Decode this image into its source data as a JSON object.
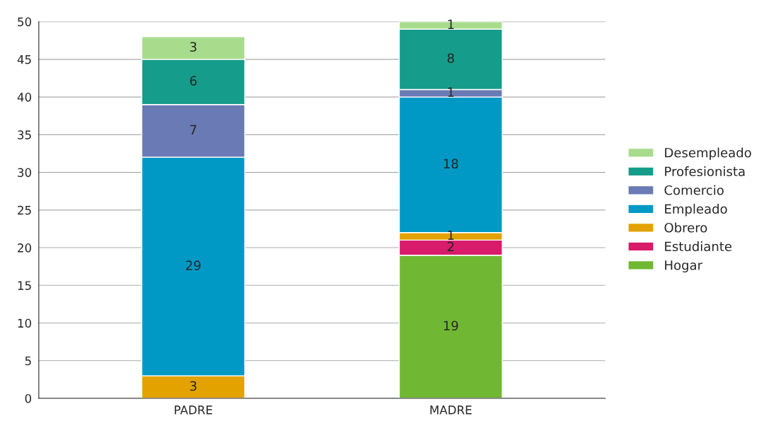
{
  "chart_data": {
    "type": "bar",
    "stacked": true,
    "categories": [
      "PADRE",
      "MADRE"
    ],
    "series": [
      {
        "name": "Hogar",
        "color": "#70b833",
        "values": [
          null,
          19
        ]
      },
      {
        "name": "Estudiante",
        "color": "#d81b6a",
        "values": [
          null,
          2
        ]
      },
      {
        "name": "Obrero",
        "color": "#e3a200",
        "values": [
          3,
          1
        ]
      },
      {
        "name": "Empleado",
        "color": "#0099c6",
        "values": [
          29,
          18
        ]
      },
      {
        "name": "Comercio",
        "color": "#6a7ab5",
        "values": [
          7,
          1
        ]
      },
      {
        "name": "Profesionista",
        "color": "#169c8a",
        "values": [
          6,
          8
        ]
      },
      {
        "name": "Desempleado",
        "color": "#a8dc8c",
        "values": [
          3,
          1
        ]
      }
    ],
    "ylim": [
      0,
      50
    ],
    "yticks": [
      0,
      5,
      10,
      15,
      20,
      25,
      30,
      35,
      40,
      45,
      50
    ],
    "grid": "y",
    "legend": "right",
    "data_labels": true
  }
}
